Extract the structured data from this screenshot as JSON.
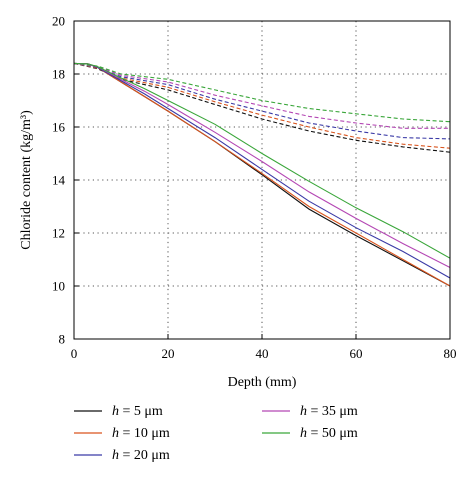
{
  "chart_data": {
    "type": "line",
    "xlabel": "Depth (mm)",
    "ylabel": "Chloride content (kg/m³)",
    "xlim": [
      0,
      80
    ],
    "ylim": [
      8,
      20
    ],
    "xticks": [
      "0",
      "20",
      "40",
      "60",
      "80"
    ],
    "yticks": [
      "8",
      "10",
      "12",
      "14",
      "16",
      "18",
      "20"
    ],
    "grid": "dotted",
    "legend_position": "bottom",
    "series": [
      {
        "name": "h = 5 μm",
        "label_var": "h",
        "label_rest": " = 5 μm",
        "color": "#111111",
        "solid": [
          [
            0,
            18.4
          ],
          [
            3,
            18.38
          ],
          [
            5,
            18.25
          ],
          [
            10,
            17.7
          ],
          [
            15,
            17.15
          ],
          [
            20,
            16.6
          ],
          [
            30,
            15.45
          ],
          [
            40,
            14.2
          ],
          [
            50,
            12.9
          ],
          [
            60,
            11.9
          ],
          [
            70,
            10.95
          ],
          [
            80,
            10.0
          ]
        ],
        "dashed": [
          [
            0,
            18.4
          ],
          [
            5,
            18.2
          ],
          [
            10,
            17.8
          ],
          [
            20,
            17.4
          ],
          [
            30,
            16.85
          ],
          [
            40,
            16.3
          ],
          [
            50,
            15.85
          ],
          [
            60,
            15.5
          ],
          [
            70,
            15.25
          ],
          [
            80,
            15.05
          ]
        ]
      },
      {
        "name": "h = 10 μm",
        "label_var": "h",
        "label_rest": " = 10 μm",
        "color": "#d9541e",
        "solid": [
          [
            0,
            18.4
          ],
          [
            3,
            18.38
          ],
          [
            5,
            18.25
          ],
          [
            10,
            17.7
          ],
          [
            15,
            17.15
          ],
          [
            20,
            16.6
          ],
          [
            30,
            15.45
          ],
          [
            40,
            14.25
          ],
          [
            50,
            13.0
          ],
          [
            60,
            12.0
          ],
          [
            70,
            11.0
          ],
          [
            80,
            10.0
          ]
        ],
        "dashed": [
          [
            0,
            18.4
          ],
          [
            5,
            18.22
          ],
          [
            10,
            17.85
          ],
          [
            20,
            17.5
          ],
          [
            30,
            16.95
          ],
          [
            40,
            16.45
          ],
          [
            50,
            16.0
          ],
          [
            60,
            15.6
          ],
          [
            70,
            15.35
          ],
          [
            80,
            15.2
          ]
        ]
      },
      {
        "name": "h = 20 μm",
        "label_var": "h",
        "label_rest": " = 20 μm",
        "color": "#3a3aa6",
        "solid": [
          [
            0,
            18.4
          ],
          [
            3,
            18.38
          ],
          [
            5,
            18.25
          ],
          [
            10,
            17.75
          ],
          [
            15,
            17.25
          ],
          [
            20,
            16.7
          ],
          [
            30,
            15.6
          ],
          [
            40,
            14.4
          ],
          [
            50,
            13.2
          ],
          [
            60,
            12.2
          ],
          [
            70,
            11.3
          ],
          [
            80,
            10.3
          ]
        ],
        "dashed": [
          [
            0,
            18.4
          ],
          [
            5,
            18.25
          ],
          [
            10,
            17.9
          ],
          [
            20,
            17.6
          ],
          [
            30,
            17.05
          ],
          [
            40,
            16.6
          ],
          [
            50,
            16.15
          ],
          [
            60,
            15.85
          ],
          [
            70,
            15.6
          ],
          [
            80,
            15.55
          ]
        ]
      },
      {
        "name": "h = 35 μm",
        "label_var": "h",
        "label_rest": " = 35 μm",
        "color": "#b447b4",
        "solid": [
          [
            0,
            18.4
          ],
          [
            3,
            18.38
          ],
          [
            5,
            18.27
          ],
          [
            10,
            17.8
          ],
          [
            15,
            17.35
          ],
          [
            20,
            16.85
          ],
          [
            30,
            15.8
          ],
          [
            40,
            14.7
          ],
          [
            50,
            13.55
          ],
          [
            60,
            12.55
          ],
          [
            70,
            11.6
          ],
          [
            80,
            10.7
          ]
        ],
        "dashed": [
          [
            0,
            18.4
          ],
          [
            5,
            18.28
          ],
          [
            10,
            17.95
          ],
          [
            20,
            17.7
          ],
          [
            30,
            17.2
          ],
          [
            40,
            16.8
          ],
          [
            50,
            16.4
          ],
          [
            60,
            16.15
          ],
          [
            70,
            15.95
          ],
          [
            80,
            15.95
          ]
        ]
      },
      {
        "name": "h = 50 μm",
        "label_var": "h",
        "label_rest": " = 50 μm",
        "color": "#3aa63a",
        "solid": [
          [
            0,
            18.4
          ],
          [
            3,
            18.38
          ],
          [
            5,
            18.28
          ],
          [
            10,
            17.85
          ],
          [
            15,
            17.45
          ],
          [
            20,
            17.0
          ],
          [
            30,
            16.1
          ],
          [
            40,
            15.0
          ],
          [
            50,
            13.95
          ],
          [
            60,
            12.95
          ],
          [
            70,
            12.05
          ],
          [
            80,
            11.05
          ]
        ],
        "dashed": [
          [
            0,
            18.4
          ],
          [
            5,
            18.3
          ],
          [
            10,
            18.0
          ],
          [
            20,
            17.8
          ],
          [
            30,
            17.4
          ],
          [
            40,
            17.0
          ],
          [
            50,
            16.7
          ],
          [
            60,
            16.5
          ],
          [
            70,
            16.3
          ],
          [
            80,
            16.2
          ]
        ]
      }
    ]
  }
}
